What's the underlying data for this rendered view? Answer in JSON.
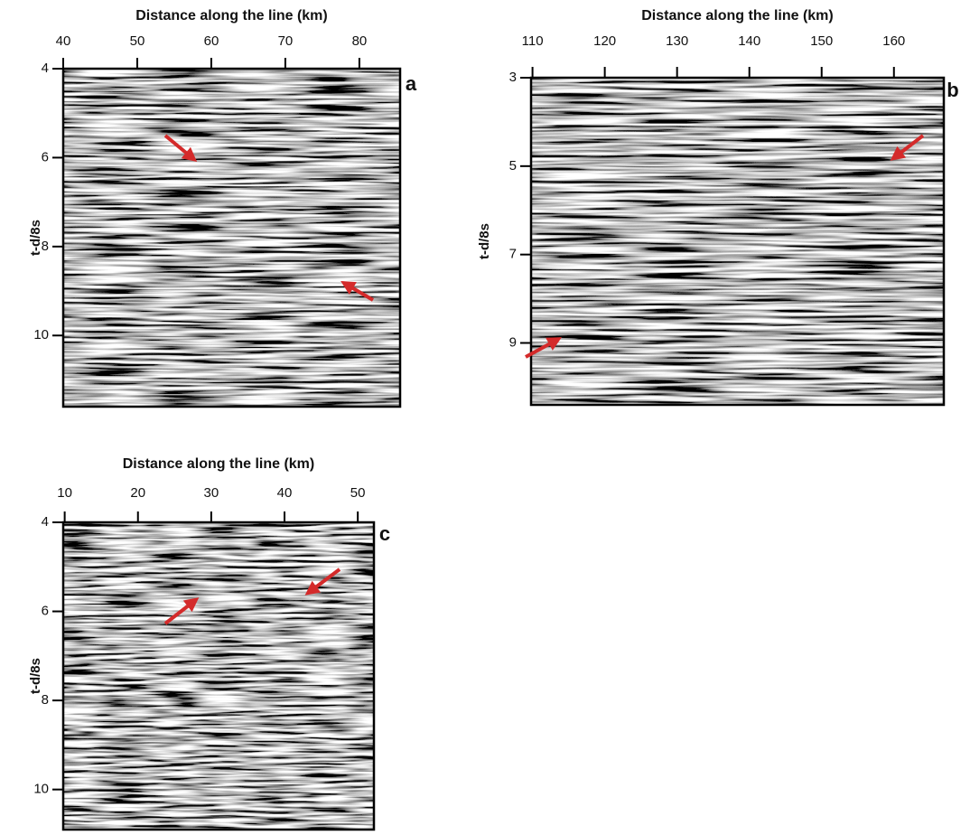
{
  "chart_data": [
    {
      "type": "seismic",
      "title": "Distance along the line (km)",
      "ylabel": "t-d/8s",
      "panel_label": "a",
      "xlim": [
        40,
        85.5
      ],
      "xticks": [
        40,
        50,
        60,
        70,
        80
      ],
      "ylim": [
        11.6,
        4
      ],
      "yticks": [
        4,
        6,
        8,
        10
      ]
    },
    {
      "type": "seismic",
      "title": "Distance along the line (km)",
      "ylabel": "t-d/8s",
      "panel_label": "b",
      "xlim": [
        109.8,
        166.9
      ],
      "xticks": [
        110,
        120,
        130,
        140,
        150,
        160
      ],
      "ylim": [
        10.4,
        3
      ],
      "yticks": [
        3,
        5,
        7,
        9
      ]
    },
    {
      "type": "seismic",
      "title": "Distance along the line (km)",
      "ylabel": "t-d/8s",
      "panel_label": "c",
      "xlim": [
        9.8,
        52.2
      ],
      "xticks": [
        10,
        20,
        30,
        40,
        50
      ],
      "ylim": [
        10.9,
        4
      ],
      "yticks": [
        4,
        6,
        8,
        10
      ]
    }
  ]
}
